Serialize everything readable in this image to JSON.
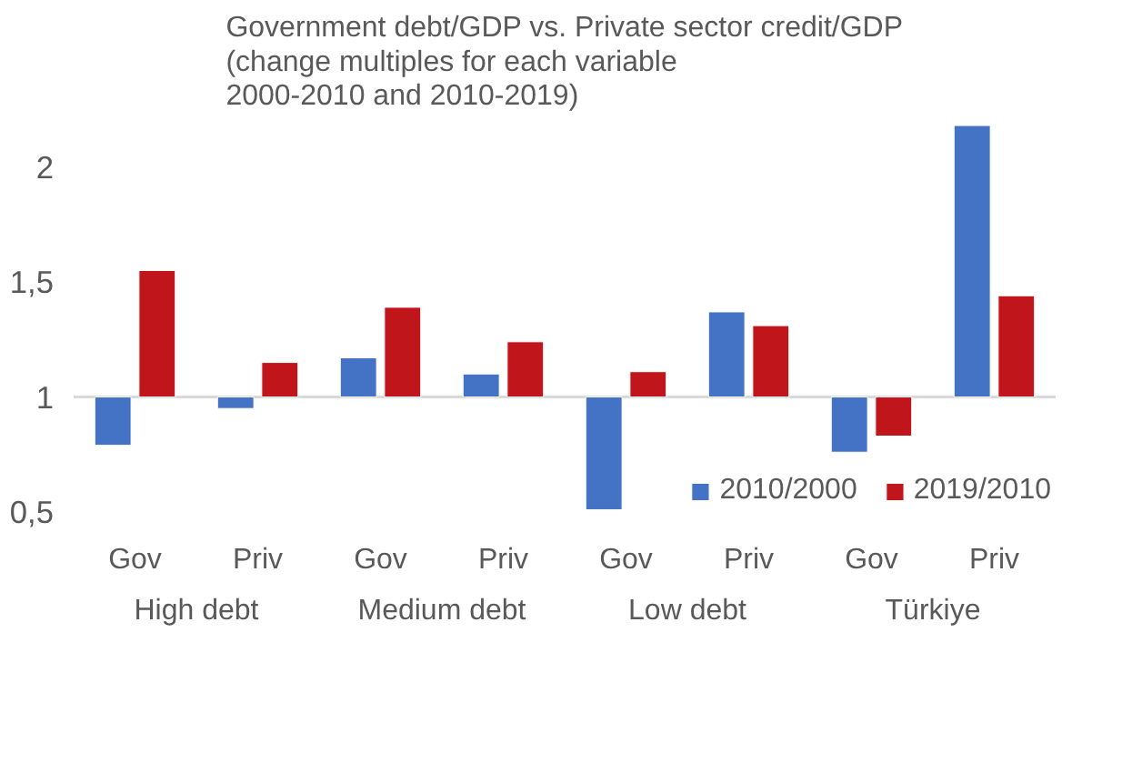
{
  "chart_data": {
    "type": "bar",
    "title": "Government debt/GDP vs. Private sector credit/GDP\n(change multiples for each  variable\n2000-2010 and 2010-2019)",
    "categories": [
      "Gov",
      "Priv",
      "Gov",
      "Priv",
      "Gov",
      "Priv",
      "Gov",
      "Priv"
    ],
    "annotations": [
      "High debt",
      "Medium debt",
      "Low debt",
      "Türkiye"
    ],
    "series": [
      {
        "name": "2010/2000",
        "color": "#4472c4",
        "values": [
          -0.21,
          -0.05,
          0.17,
          0.1,
          -0.49,
          0.37,
          -0.24,
          1.18
        ],
        "base": [
          1,
          1,
          1,
          1,
          1,
          1,
          1,
          1
        ]
      },
      {
        "name": "2019/2010",
        "color": "#c0161b",
        "values": [
          0.55,
          0.15,
          0.39,
          0.24,
          0.11,
          0.31,
          -0.17,
          0.44
        ],
        "base": [
          1,
          1,
          1,
          1,
          1,
          1,
          1,
          1
        ]
      }
    ],
    "ylim": [
      0.5,
      2.2
    ],
    "yticks": [
      {
        "value": 0.5,
        "label": "0,5"
      },
      1,
      {
        "value": 1.5,
        "label": "1,5"
      },
      2
    ],
    "ref_lines": [
      {
        "axis": "y",
        "value": 1,
        "color": "#d9d9d9"
      }
    ],
    "grid": false,
    "legend": "bottom right"
  }
}
